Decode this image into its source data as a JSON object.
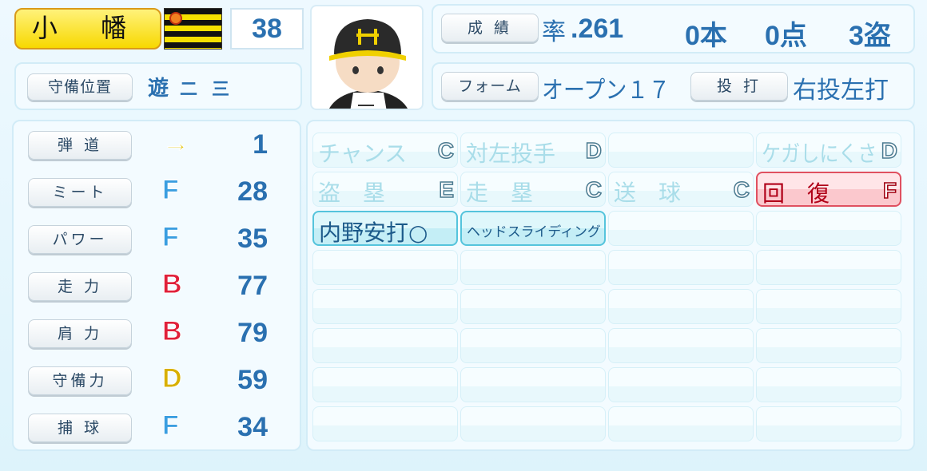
{
  "player": {
    "name": "小 幡",
    "number": "38",
    "team": "Tigers"
  },
  "position": {
    "label": "守備位置",
    "main": "遊",
    "sub": [
      "二",
      "三"
    ]
  },
  "record": {
    "button": "成 績",
    "avg_label": "率",
    "avg": ".261",
    "hr": "0本",
    "rbi": "0点",
    "sb": "3盗"
  },
  "form": {
    "button": "フォーム",
    "value": "オープン１７",
    "throw_bat_button": "投 打",
    "throw_bat": "右投左打"
  },
  "stats": [
    {
      "label": "弾 道",
      "grade": "→",
      "value": "1",
      "color": "#e0c000"
    },
    {
      "label": "ミート",
      "grade": "F",
      "value": "28",
      "color": "#3a9ee0"
    },
    {
      "label": "パワー",
      "grade": "F",
      "value": "35",
      "color": "#3a9ee0"
    },
    {
      "label": "走 力",
      "grade": "B",
      "value": "77",
      "color": "#e0203a"
    },
    {
      "label": "肩 力",
      "grade": "B",
      "value": "79",
      "color": "#e0203a"
    },
    {
      "label": "守備力",
      "grade": "D",
      "value": "59",
      "color": "#d8b000"
    },
    {
      "label": "捕 球",
      "grade": "F",
      "value": "34",
      "color": "#3a9ee0"
    }
  ],
  "abilities": [
    {
      "label": "チャンス",
      "grade": "C"
    },
    {
      "label": "対左投手",
      "grade": "D"
    },
    {
      "label": "",
      "grade": ""
    },
    {
      "label": "ケガしにくさ",
      "grade": "D"
    },
    {
      "label": "盗　塁",
      "grade": "E"
    },
    {
      "label": "走　塁",
      "grade": "C"
    },
    {
      "label": "送　球",
      "grade": "C"
    },
    {
      "label": "回　復",
      "grade": "F",
      "style": "red"
    },
    {
      "label": "内野安打○",
      "grade": "",
      "style": "hl"
    },
    {
      "label": "ヘッドスライディング",
      "grade": "",
      "style": "hl"
    }
  ]
}
